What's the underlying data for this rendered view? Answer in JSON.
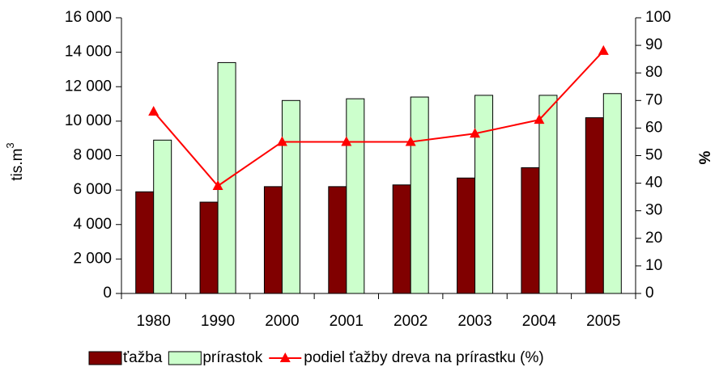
{
  "chart_data": {
    "type": "bar_line",
    "categories": [
      "1980",
      "1990",
      "2000",
      "2001",
      "2002",
      "2003",
      "2004",
      "2005"
    ],
    "y_label": "tis.m",
    "y_label_superscript": "3",
    "y2_label": "%",
    "series": [
      {
        "name": "ťažba",
        "color": "#800000",
        "type": "bar",
        "values": [
          5900,
          5300,
          6200,
          6200,
          6300,
          6700,
          7300,
          10200
        ]
      },
      {
        "name": "prírastok",
        "color": "#ccffcc",
        "type": "bar",
        "values": [
          8900,
          13400,
          11200,
          11300,
          11400,
          11500,
          11500,
          11600
        ]
      },
      {
        "name": "podiel ťažby dreva na prírastku (%)",
        "color": "#ff0000",
        "type": "line",
        "axis": "y2",
        "values": [
          66,
          39,
          55,
          55,
          55,
          58,
          63,
          88
        ]
      }
    ],
    "ylim": [
      0,
      16000
    ],
    "yticks": [
      0,
      {
        "value": 2000,
        "label": "2 000"
      },
      {
        "value": 4000,
        "label": "4 000"
      },
      {
        "value": 6000,
        "label": "6 000"
      },
      {
        "value": 8000,
        "label": "8 000"
      },
      {
        "value": 10000,
        "label": "10 000"
      },
      {
        "value": 12000,
        "label": "12 000"
      },
      {
        "value": 14000,
        "label": "14 000"
      },
      {
        "value": 16000,
        "label": "16 000"
      }
    ],
    "y2lim": [
      0,
      100
    ],
    "y2ticks": [
      0,
      10,
      20,
      30,
      40,
      50,
      60,
      70,
      80,
      90,
      100
    ],
    "grid": false,
    "legend": "bottom"
  }
}
